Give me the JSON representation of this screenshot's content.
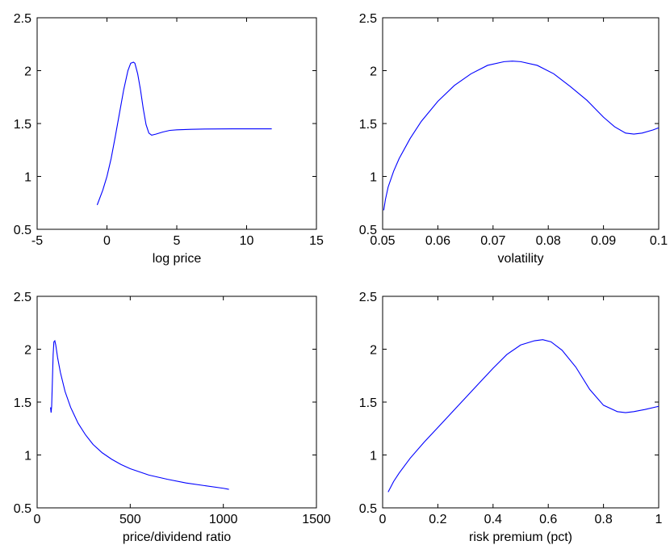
{
  "colors": {
    "series": "#0000ff",
    "axes": "#000000",
    "background": "#ffffff"
  },
  "chart_data": [
    {
      "type": "line",
      "xlabel": "log price",
      "ylabel": "",
      "xlim": [
        -5,
        15
      ],
      "ylim": [
        0.5,
        2.5
      ],
      "xticks": [
        -5,
        0,
        5,
        10,
        15
      ],
      "yticks": [
        0.5,
        1,
        1.5,
        2,
        2.5
      ],
      "xtick_labels": [
        "-5",
        "0",
        "5",
        "10",
        "15"
      ],
      "ytick_labels": [
        "0.5",
        "1",
        "1.5",
        "2",
        "2.5"
      ],
      "grid": false,
      "series": [
        {
          "x": [
            -0.7,
            -0.3,
            0.0,
            0.3,
            0.6,
            0.9,
            1.2,
            1.5,
            1.7,
            1.9,
            2.0,
            2.2,
            2.4,
            2.6,
            2.8,
            3.0,
            3.2,
            3.5,
            4.0,
            4.5,
            5.0,
            6.0,
            7.0,
            8.0,
            9.0,
            10.0,
            11.0,
            11.8
          ],
          "y": [
            0.73,
            0.87,
            1.0,
            1.17,
            1.38,
            1.6,
            1.82,
            2.0,
            2.07,
            2.08,
            2.07,
            1.97,
            1.82,
            1.64,
            1.49,
            1.41,
            1.39,
            1.4,
            1.42,
            1.435,
            1.44,
            1.445,
            1.448,
            1.449,
            1.45,
            1.45,
            1.45,
            1.45
          ]
        }
      ]
    },
    {
      "type": "line",
      "xlabel": "volatility",
      "ylabel": "",
      "xlim": [
        0.05,
        0.1
      ],
      "ylim": [
        0.5,
        2.5
      ],
      "xticks": [
        0.05,
        0.06,
        0.07,
        0.08,
        0.09,
        0.1
      ],
      "yticks": [
        0.5,
        1,
        1.5,
        2,
        2.5
      ],
      "xtick_labels": [
        "0.05",
        "0.06",
        "0.07",
        "0.08",
        "0.09",
        "0.1"
      ],
      "ytick_labels": [
        "0.5",
        "1",
        "1.5",
        "2",
        "2.5"
      ],
      "grid": false,
      "series": [
        {
          "x": [
            0.0502,
            0.0505,
            0.051,
            0.052,
            0.053,
            0.055,
            0.057,
            0.06,
            0.063,
            0.066,
            0.069,
            0.072,
            0.0735,
            0.075,
            0.078,
            0.081,
            0.084,
            0.087,
            0.09,
            0.092,
            0.094,
            0.0955,
            0.097,
            0.099,
            0.1
          ],
          "y": [
            0.68,
            0.78,
            0.9,
            1.05,
            1.17,
            1.36,
            1.52,
            1.71,
            1.86,
            1.97,
            2.05,
            2.085,
            2.09,
            2.085,
            2.05,
            1.97,
            1.85,
            1.72,
            1.56,
            1.47,
            1.41,
            1.4,
            1.41,
            1.44,
            1.46
          ]
        }
      ]
    },
    {
      "type": "line",
      "xlabel": "price/dividend ratio",
      "ylabel": "",
      "xlim": [
        0,
        1500
      ],
      "ylim": [
        0.5,
        2.5
      ],
      "xticks": [
        0,
        500,
        1000,
        1500
      ],
      "yticks": [
        0.5,
        1,
        1.5,
        2,
        2.5
      ],
      "xtick_labels": [
        "0",
        "500",
        "1000",
        "1500"
      ],
      "ytick_labels": [
        "0.5",
        "1",
        "1.5",
        "2",
        "2.5"
      ],
      "grid": false,
      "series": [
        {
          "x": [
            72,
            75,
            78,
            82,
            86,
            90,
            95,
            100,
            110,
            125,
            150,
            180,
            220,
            260,
            300,
            350,
            400,
            450,
            500,
            600,
            700,
            800,
            900,
            1000,
            1030
          ],
          "y": [
            1.45,
            1.4,
            1.46,
            1.7,
            1.95,
            2.07,
            2.08,
            2.04,
            1.92,
            1.78,
            1.6,
            1.45,
            1.3,
            1.19,
            1.1,
            1.02,
            0.96,
            0.91,
            0.87,
            0.81,
            0.77,
            0.735,
            0.71,
            0.685,
            0.675
          ]
        }
      ]
    },
    {
      "type": "line",
      "xlabel": "risk premium (pct)",
      "ylabel": "",
      "xlim": [
        0,
        1
      ],
      "ylim": [
        0.5,
        2.5
      ],
      "xticks": [
        0,
        0.2,
        0.4,
        0.6,
        0.8,
        1
      ],
      "yticks": [
        0.5,
        1,
        1.5,
        2,
        2.5
      ],
      "xtick_labels": [
        "0",
        "0.2",
        "0.4",
        "0.6",
        "0.8",
        "1"
      ],
      "ytick_labels": [
        "0.5",
        "1",
        "1.5",
        "2",
        "2.5"
      ],
      "grid": false,
      "series": [
        {
          "x": [
            0.02,
            0.04,
            0.06,
            0.1,
            0.15,
            0.2,
            0.25,
            0.3,
            0.35,
            0.4,
            0.45,
            0.5,
            0.55,
            0.58,
            0.61,
            0.65,
            0.7,
            0.75,
            0.8,
            0.85,
            0.88,
            0.91,
            0.95,
            1.0
          ],
          "y": [
            0.65,
            0.75,
            0.83,
            0.97,
            1.12,
            1.26,
            1.4,
            1.54,
            1.68,
            1.82,
            1.95,
            2.04,
            2.08,
            2.09,
            2.07,
            1.99,
            1.83,
            1.62,
            1.47,
            1.41,
            1.4,
            1.41,
            1.43,
            1.46
          ]
        }
      ]
    }
  ]
}
